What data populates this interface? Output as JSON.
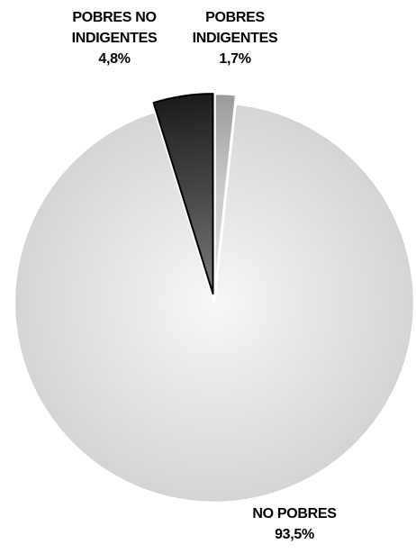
{
  "chart_data": {
    "type": "pie",
    "title": "",
    "start": "top",
    "direction": "clockwise",
    "exploded": [
      "POBRES INDIGENTES",
      "POBRES NO INDIGENTES"
    ],
    "slices": [
      {
        "name": "POBRES INDIGENTES",
        "label_lines": [
          "POBRES",
          "INDIGENTES"
        ],
        "value": 1.7,
        "value_text": "1,7%",
        "color": "#c8c8c8",
        "color_light": "#e2e2e2",
        "color_dark": "#9a9a9a"
      },
      {
        "name": "NO POBRES",
        "label_lines": [
          "NO POBRES"
        ],
        "value": 93.5,
        "value_text": "93,5%",
        "color": "#e4e4e4",
        "color_light": "#f6f6f6",
        "color_dark": "#d4d4d4"
      },
      {
        "name": "POBRES NO INDIGENTES",
        "label_lines": [
          "POBRES NO",
          "INDIGENTES"
        ],
        "value": 4.8,
        "value_text": "4,8%",
        "color": "#444444",
        "color_light": "#7a7a7a",
        "color_dark": "#1c1c1c"
      }
    ]
  }
}
